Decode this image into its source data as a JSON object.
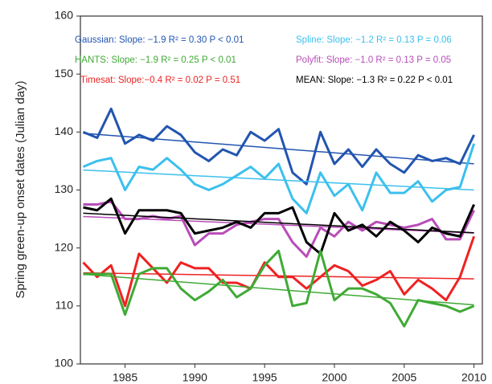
{
  "chart_data": {
    "type": "line",
    "y_label": "Spring green-up onset dates (Julian day)",
    "x": [
      1982,
      1983,
      1984,
      1985,
      1986,
      1987,
      1988,
      1989,
      1990,
      1991,
      1992,
      1993,
      1994,
      1995,
      1996,
      1997,
      1998,
      1999,
      2000,
      2001,
      2002,
      2003,
      2004,
      2005,
      2006,
      2007,
      2008,
      2009,
      2010
    ],
    "series": [
      {
        "name": "Gaussian",
        "color": "#2255b0",
        "values": [
          140,
          139,
          144,
          138,
          139.5,
          138.5,
          141,
          139.5,
          136.5,
          135,
          137,
          136,
          140,
          138.5,
          140.5,
          133,
          131,
          140,
          134.5,
          137,
          134,
          137,
          134.5,
          133,
          136,
          135,
          135.5,
          134.5,
          139.5
        ]
      },
      {
        "name": "Spline",
        "color": "#3cc0ee",
        "values": [
          134,
          135,
          135.5,
          130,
          134,
          133.5,
          135.5,
          133.5,
          131,
          130,
          131,
          132.5,
          134,
          132,
          134.5,
          128.5,
          126,
          133,
          129,
          131,
          126.5,
          133,
          129.5,
          129.5,
          131.5,
          128,
          130,
          130.5,
          138
        ]
      },
      {
        "name": "Polyfit",
        "color": "#b84db8",
        "values": [
          127.5,
          127.5,
          128,
          125,
          125,
          125.5,
          125,
          125.5,
          120.5,
          122.5,
          122.5,
          124,
          124.5,
          125,
          125,
          121,
          118.5,
          123.5,
          122,
          124.5,
          123,
          124.5,
          124,
          123.5,
          124,
          125,
          121.5,
          121.5,
          126.5
        ]
      },
      {
        "name": "MEAN",
        "color": "#000000",
        "values": [
          127,
          126.5,
          128.5,
          122.5,
          126.5,
          126.5,
          126.5,
          126,
          122.5,
          123,
          123.5,
          124.5,
          123.5,
          126,
          126,
          127,
          121,
          119,
          126,
          123,
          124,
          122,
          124.5,
          123,
          121,
          123.5,
          122.5,
          122,
          127.5
        ]
      },
      {
        "name": "Timesat",
        "color": "#ee2222",
        "values": [
          117.5,
          115,
          117,
          110,
          119,
          116.5,
          114,
          117.5,
          116.5,
          116.5,
          114,
          114,
          113,
          117.5,
          115,
          115,
          113,
          115,
          117,
          116,
          113.5,
          114.5,
          116,
          112,
          114.5,
          113,
          111,
          115,
          122
        ]
      },
      {
        "name": "HANTS",
        "color": "#3faa35",
        "values": [
          115.5,
          115.5,
          115.5,
          108.5,
          115.5,
          116.5,
          116.5,
          113,
          111,
          112.5,
          114.5,
          111.5,
          113,
          117,
          119.5,
          110,
          110.5,
          119.5,
          111,
          113,
          113,
          112,
          110.5,
          106.5,
          111,
          110.5,
          110,
          109,
          110
        ]
      }
    ],
    "annotations": [
      {
        "text": "Gaussian: Slope: −1.9  R² = 0.30  P < 0.01",
        "color": "#2255b0"
      },
      {
        "text": "Spline: Slope: −1.2  R² = 0.13  P = 0.06",
        "color": "#3cc0ee"
      },
      {
        "text": "HANTS: Slope: −1.9  R² = 0.25  P < 0.01",
        "color": "#3faa35"
      },
      {
        "text": "Polyfit: Slope: −1.0  R² = 0.13  P = 0.05",
        "color": "#b84db8"
      },
      {
        "text": "Timesat: Slope:−0.4  R² = 0.02  P = 0.51",
        "color": "#ee2222"
      },
      {
        "text": "MEAN: Slope: −1.3  R² = 0.22  P < 0.01",
        "color": "#000000"
      }
    ],
    "xlim": [
      1981.8,
      2010.6
    ],
    "xticks": [
      1985,
      1990,
      1995,
      2000,
      2005,
      2010
    ],
    "ylim": [
      100,
      160
    ],
    "yticks": [
      100,
      110,
      120,
      130,
      140,
      150,
      160
    ]
  }
}
